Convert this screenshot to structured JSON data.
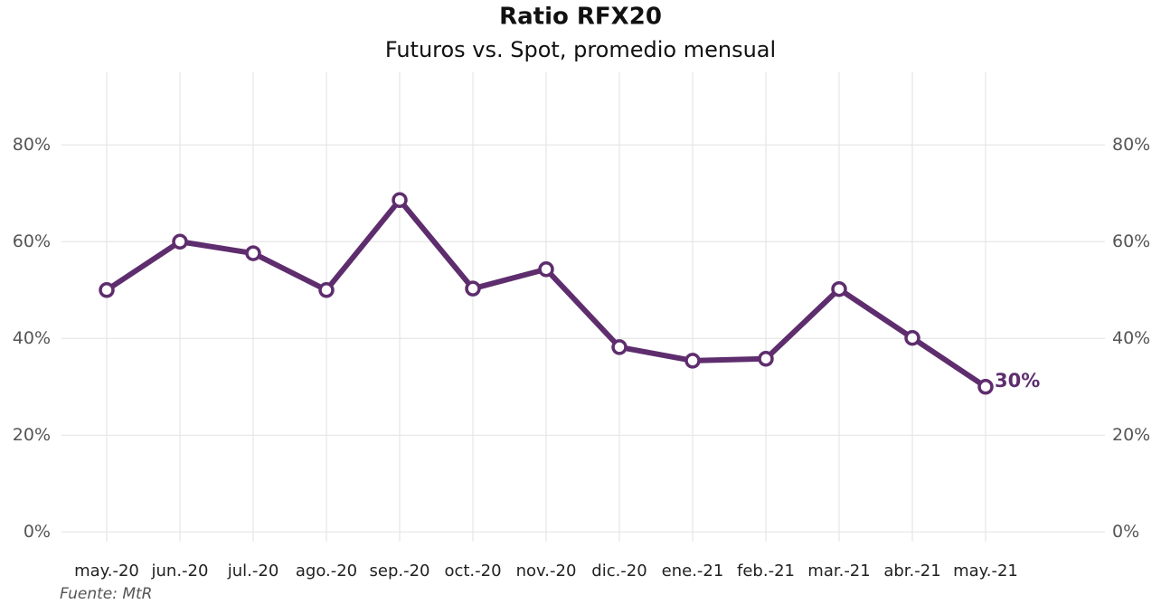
{
  "chart_data": {
    "type": "line",
    "title": "Ratio RFX20",
    "subtitle": "Futuros vs. Spot, promedio mensual",
    "caption": "Fuente: MtR",
    "categories": [
      "may.-20",
      "jun.-20",
      "jul.-20",
      "ago.-20",
      "sep.-20",
      "oct.-20",
      "nov.-20",
      "dic.-20",
      "ene.-21",
      "feb.-21",
      "mar.-21",
      "abr.-21",
      "may.-21"
    ],
    "series": [
      {
        "name": "Ratio RFX20",
        "color": "#5e2d6e",
        "values": [
          50.0,
          60.0,
          57.6,
          50.0,
          68.6,
          50.3,
          54.3,
          38.2,
          35.4,
          35.8,
          50.2,
          40.1,
          30
        ],
        "value_labels": [
          null,
          null,
          null,
          null,
          null,
          null,
          null,
          null,
          null,
          null,
          null,
          null,
          "30%"
        ]
      }
    ],
    "ylim": [
      -2,
      95
    ],
    "yticks": [
      {
        "value": 0,
        "label": "0%"
      },
      {
        "value": 20,
        "label": "20%"
      },
      {
        "value": 40,
        "label": "40%"
      },
      {
        "value": 60,
        "label": "60%"
      },
      {
        "value": 80,
        "label": "80%"
      }
    ],
    "y2lim": [
      -2,
      95
    ],
    "y2ticks": [
      {
        "value": 0,
        "label": "0%"
      },
      {
        "value": 20,
        "label": "20%"
      },
      {
        "value": 40,
        "label": "40%"
      },
      {
        "value": 60,
        "label": "60%"
      },
      {
        "value": 80,
        "label": "80%"
      }
    ],
    "grid": true
  }
}
